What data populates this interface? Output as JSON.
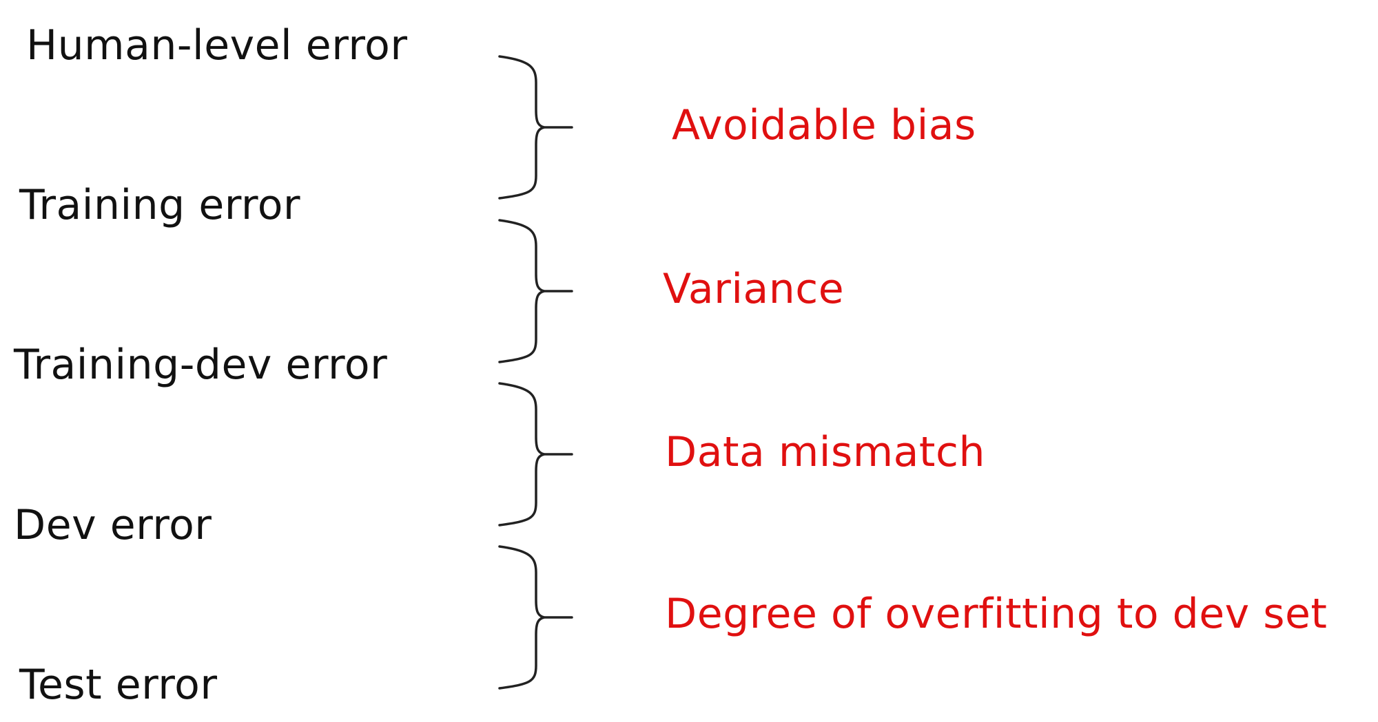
{
  "levels": [
    {
      "label": "Human-level error"
    },
    {
      "label": "Training error"
    },
    {
      "label": "Training-dev error"
    },
    {
      "label": "Dev error"
    },
    {
      "label": "Test error"
    }
  ],
  "gaps": [
    {
      "label": "Avoidable bias"
    },
    {
      "label": "Variance"
    },
    {
      "label": "Data mismatch"
    },
    {
      "label": "Degree of overfitting to dev set"
    }
  ],
  "colors": {
    "level_text": "#111111",
    "gap_text": "#e01010",
    "bracket": "#222222"
  }
}
